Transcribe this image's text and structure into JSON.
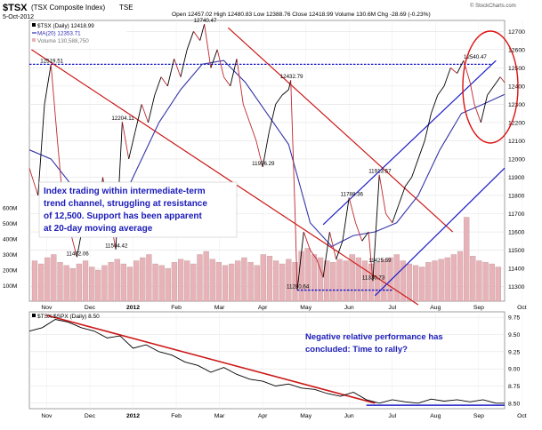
{
  "header": {
    "symbol": "$TSX",
    "name": "(TSX Composite Index)",
    "exchange": "TSE",
    "date": "5-Oct-2012",
    "ohlc": "Open 12457.02  High 12480.83  Low 12388.76  Close 12418.99  Volume 130.6M  Chg -28.69 (-0.23%)",
    "watermark": "© StockCharts.com"
  },
  "legend": [
    {
      "text": "$TSX (Daily) 12418.99",
      "color": "#000000"
    },
    {
      "text": "MA(20) 12353.71",
      "color": "#2a2ab0"
    },
    {
      "text": "Volume 130,588,750",
      "color": "#777777"
    }
  ],
  "colors": {
    "price": "#000000",
    "up_segment": "#c0282f",
    "ma": "#3535a8",
    "volume": "#e8b3b8",
    "volume_edge": "#b08a8e",
    "red_trend": "#cc1a1a",
    "blue_trend": "#1c1cc8",
    "resistance": "#1515c8",
    "annotation_text": "#1a1ab8",
    "circle": "#dd1010"
  },
  "annotations": {
    "main_box": [
      "Index trading within intermediate-term",
      "trend channel, struggling at resistance",
      "of 12,500.   Support has been apparent",
      "at 20-day moving average"
    ],
    "lower_box": [
      "Negative relative performance has",
      "concluded: Time to rally?"
    ]
  },
  "lower_panel": {
    "legend": "$TSX:$SPX (Daily) 8.50"
  },
  "chart_data": [
    {
      "type": "line",
      "title": "$TSX (TSX Composite Index) TSE",
      "x_tick_labels": [
        "Nov",
        "Dec",
        "2012",
        "Feb",
        "Mar",
        "Apr",
        "May",
        "Jun",
        "Jul",
        "Aug",
        "Sep",
        "Oct"
      ],
      "y_ticks": [
        11300,
        11400,
        11500,
        11600,
        11700,
        11800,
        11900,
        12000,
        12100,
        12200,
        12300,
        12400,
        12500,
        12600,
        12700
      ],
      "ylim": [
        11220,
        12760
      ],
      "volume_ticks": [
        "100M",
        "200M",
        "300M",
        "400M",
        "500M",
        "600M"
      ],
      "grid": true,
      "point_labels": [
        {
          "label": "12519.51",
          "x": 0.5,
          "y": 12519.51
        },
        {
          "label": "12204.11",
          "x": 2.15,
          "y": 12204.11
        },
        {
          "label": "11462.06",
          "x": 1.1,
          "y": 11462.06
        },
        {
          "label": "11504.42",
          "x": 2.0,
          "y": 11504.42
        },
        {
          "label": "12740.47",
          "x": 4.05,
          "y": 12740.47
        },
        {
          "label": "12432.79",
          "x": 6.05,
          "y": 12432.79
        },
        {
          "label": "11956.29",
          "x": 5.4,
          "y": 11956.29
        },
        {
          "label": "11280.64",
          "x": 6.2,
          "y": 11280.64
        },
        {
          "label": "11788.36",
          "x": 7.45,
          "y": 11788.36
        },
        {
          "label": "11913.57",
          "x": 8.1,
          "y": 11913.57
        },
        {
          "label": "11425.59",
          "x": 8.1,
          "y": 11425.59
        },
        {
          "label": "11330.73",
          "x": 7.95,
          "y": 11330.73
        },
        {
          "label": "12540.47",
          "x": 10.3,
          "y": 12540.47
        }
      ],
      "series": [
        {
          "name": "$TSX",
          "x": [
            0,
            0.2,
            0.35,
            0.5,
            0.65,
            0.8,
            0.95,
            1.1,
            1.25,
            1.4,
            1.55,
            1.7,
            1.85,
            2.0,
            2.15,
            2.3,
            2.45,
            2.6,
            2.75,
            2.9,
            3.05,
            3.2,
            3.35,
            3.5,
            3.65,
            3.8,
            3.95,
            4.05,
            4.2,
            4.35,
            4.5,
            4.65,
            4.8,
            4.95,
            5.1,
            5.25,
            5.4,
            5.55,
            5.7,
            5.85,
            6.0,
            6.05,
            6.15,
            6.2,
            6.35,
            6.5,
            6.65,
            6.8,
            6.95,
            7.1,
            7.25,
            7.4,
            7.55,
            7.7,
            7.85,
            7.95,
            8.1,
            8.25,
            8.4,
            8.55,
            8.7,
            8.85,
            9.0,
            9.15,
            9.3,
            9.45,
            9.6,
            9.75,
            9.9,
            10.05,
            10.2,
            10.3,
            10.45,
            10.6,
            10.75,
            10.9,
            11.0
          ],
          "values": [
            11950,
            11800,
            12300,
            12519,
            12100,
            11700,
            11600,
            11462,
            11650,
            11750,
            11600,
            11900,
            11700,
            11504,
            12204,
            12000,
            12150,
            12300,
            12200,
            12350,
            12450,
            12400,
            12550,
            12450,
            12600,
            12700,
            12650,
            12740,
            12500,
            12600,
            12450,
            12400,
            12550,
            12300,
            12200,
            12100,
            11956,
            12150,
            12300,
            12350,
            12380,
            12432,
            11700,
            11281,
            11600,
            11500,
            11450,
            11350,
            11600,
            11450,
            11550,
            11788,
            11650,
            11550,
            11600,
            11331,
            11913,
            11700,
            11650,
            11750,
            11850,
            11900,
            12000,
            12100,
            12250,
            12350,
            12400,
            12500,
            12470,
            12540,
            12420,
            12300,
            12200,
            12350,
            12400,
            12450,
            12419
          ]
        },
        {
          "name": "MA(20)",
          "x": [
            0,
            0.5,
            1.0,
            1.5,
            2.0,
            2.5,
            3.0,
            3.5,
            4.0,
            4.5,
            5.0,
            5.5,
            6.0,
            6.5,
            7.0,
            7.5,
            8.0,
            8.5,
            9.0,
            9.5,
            10.0,
            10.5,
            11.0
          ],
          "values": [
            12050,
            12000,
            11850,
            11720,
            11700,
            11950,
            12200,
            12380,
            12520,
            12540,
            12420,
            12250,
            12080,
            11650,
            11520,
            11580,
            11600,
            11650,
            11800,
            12050,
            12250,
            12300,
            12354
          ]
        }
      ],
      "volume_values": [
        260,
        240,
        280,
        300,
        250,
        230,
        210,
        240,
        260,
        220,
        200,
        230,
        250,
        270,
        240,
        220,
        260,
        280,
        300,
        240,
        230,
        210,
        250,
        270,
        260,
        240,
        300,
        320,
        270,
        250,
        230,
        240,
        260,
        280,
        250,
        230,
        300,
        290,
        260,
        240,
        270,
        250,
        320,
        340,
        300,
        280,
        260,
        250,
        270,
        260,
        300,
        280,
        260,
        240,
        250,
        270,
        280,
        300,
        260,
        240,
        230,
        220,
        250,
        260,
        270,
        280,
        300,
        320,
        540,
        290,
        260,
        250,
        240,
        220
      ]
    },
    {
      "type": "line",
      "title": "$TSX:$SPX (Daily) 8.50",
      "x_tick_labels": [
        "Nov",
        "Dec",
        "2012",
        "Feb",
        "Mar",
        "Apr",
        "May",
        "Jun",
        "Jul",
        "Aug",
        "Sep",
        "Oct"
      ],
      "y_ticks": [
        8.5,
        8.75,
        9.0,
        9.25,
        9.5,
        9.75
      ],
      "ylim": [
        8.42,
        9.83
      ],
      "grid": true,
      "series": [
        {
          "name": "$TSX:$SPX",
          "x": [
            0,
            0.3,
            0.6,
            0.9,
            1.2,
            1.5,
            1.8,
            2.1,
            2.4,
            2.7,
            3.0,
            3.3,
            3.6,
            3.9,
            4.2,
            4.5,
            4.8,
            5.1,
            5.4,
            5.7,
            6.0,
            6.3,
            6.6,
            6.9,
            7.2,
            7.5,
            7.8,
            8.1,
            8.4,
            8.7,
            9.0,
            9.3,
            9.6,
            9.9,
            10.2,
            10.5,
            10.8,
            11.0
          ],
          "values": [
            9.55,
            9.6,
            9.72,
            9.68,
            9.6,
            9.55,
            9.45,
            9.48,
            9.3,
            9.35,
            9.25,
            9.2,
            9.1,
            9.05,
            8.95,
            9.02,
            8.92,
            8.85,
            8.82,
            8.75,
            8.78,
            8.72,
            8.7,
            8.64,
            8.6,
            8.66,
            8.55,
            8.5,
            8.55,
            8.52,
            8.5,
            8.56,
            8.53,
            8.55,
            8.52,
            8.55,
            8.5,
            8.5
          ]
        }
      ]
    }
  ]
}
